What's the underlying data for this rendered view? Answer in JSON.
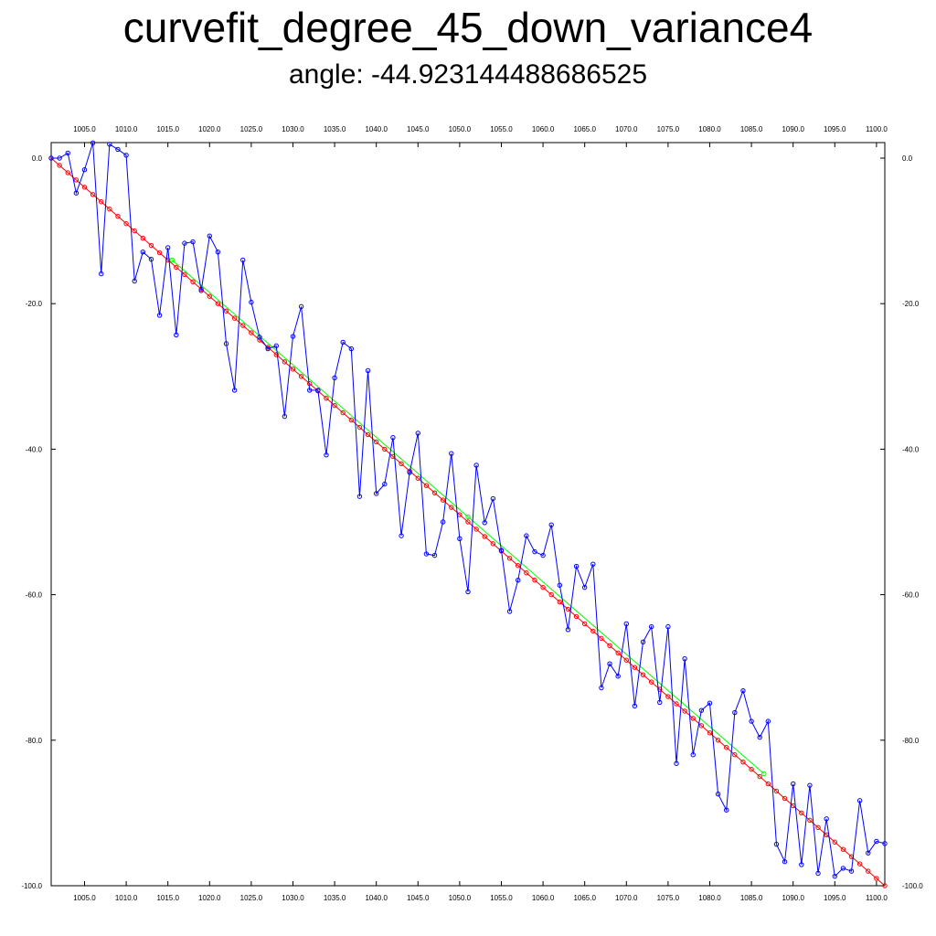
{
  "chart_data": {
    "type": "line",
    "title": "curvefit_degree_45_down_variance4",
    "subtitle": "angle: -44.923144488686525",
    "xlim": [
      1001,
      1101
    ],
    "ylim": [
      -100,
      2
    ],
    "x_ticks": [
      1005,
      1010,
      1015,
      1020,
      1025,
      1030,
      1035,
      1040,
      1045,
      1050,
      1055,
      1060,
      1065,
      1070,
      1075,
      1080,
      1085,
      1090,
      1095,
      1100
    ],
    "x_tick_labels": [
      "1005.0",
      "1010.0",
      "1015.0",
      "1020.0",
      "1025.0",
      "1030.0",
      "1035.0",
      "1040.0",
      "1045.0",
      "1050.0",
      "1055.0",
      "1060.0",
      "1065.0",
      "1070.0",
      "1075.0",
      "1080.0",
      "1085.0",
      "1090.0",
      "1095.0",
      "1100.0"
    ],
    "y_ticks": [
      0,
      -20,
      -40,
      -60,
      -80,
      -100
    ],
    "y_tick_labels": [
      "0.0",
      "-20.0",
      "-40.0",
      "-60.0",
      "-80.0",
      "-100.0"
    ],
    "grid": false,
    "series": [
      {
        "color": "#0000ff",
        "markers": true,
        "x": [
          1001,
          1002,
          1003,
          1004,
          1005,
          1006,
          1007,
          1008,
          1009,
          1010,
          1011,
          1012,
          1013,
          1014,
          1015,
          1016,
          1017,
          1018,
          1019,
          1020,
          1021,
          1022,
          1023,
          1024,
          1025,
          1026,
          1027,
          1028,
          1029,
          1030,
          1031,
          1032,
          1033,
          1034,
          1035,
          1036,
          1037,
          1038,
          1039,
          1040,
          1041,
          1042,
          1043,
          1044,
          1045,
          1046,
          1047,
          1048,
          1049,
          1050,
          1051,
          1052,
          1053,
          1054,
          1055,
          1056,
          1057,
          1058,
          1059,
          1060,
          1061,
          1062,
          1063,
          1064,
          1065,
          1066,
          1067,
          1068,
          1069,
          1070,
          1071,
          1072,
          1073,
          1074,
          1075,
          1076,
          1077,
          1078,
          1079,
          1080,
          1081,
          1082,
          1083,
          1084,
          1085,
          1086,
          1087,
          1088,
          1089,
          1090,
          1091,
          1092,
          1093,
          1094,
          1095,
          1096,
          1097,
          1098,
          1099,
          1100,
          1101
        ],
        "y": [
          0.0,
          0.0,
          0.7,
          -4.8,
          -1.6,
          2.1,
          -15.9,
          1.9,
          1.2,
          0.4,
          -16.9,
          -12.9,
          -13.9,
          -21.6,
          -12.3,
          -24.3,
          -11.7,
          -11.5,
          -18.2,
          -10.7,
          -12.9,
          -25.5,
          -31.9,
          -14.0,
          -19.8,
          -24.6,
          -26.2,
          -25.8,
          -35.5,
          -24.5,
          -20.4,
          -31.9,
          -31.9,
          -40.8,
          -30.2,
          -25.3,
          -26.2,
          -46.5,
          -29.2,
          -46.1,
          -44.8,
          -38.4,
          -51.9,
          -43.2,
          -37.8,
          -54.4,
          -54.6,
          -50.0,
          -40.6,
          -52.3,
          -59.6,
          -42.2,
          -50.1,
          -46.8,
          -53.9,
          -62.3,
          -58.0,
          -51.9,
          -54.1,
          -54.6,
          -50.4,
          -58.7,
          -64.8,
          -56.1,
          -59.0,
          -55.8,
          -72.8,
          -69.5,
          -71.2,
          -64.0,
          -75.3,
          -66.5,
          -64.4,
          -74.8,
          -64.4,
          -83.2,
          -68.8,
          -82.0,
          -75.9,
          -74.9,
          -87.4,
          -89.6,
          -76.2,
          -73.2,
          -77.4,
          -79.6,
          -77.4,
          -94.3,
          -96.7,
          -86.0,
          -97.1,
          -86.2,
          -98.3,
          -90.8,
          -98.7,
          -97.6,
          -98.0,
          -88.3,
          -95.5,
          -93.9,
          -94.2
        ]
      },
      {
        "color": "#ff0000",
        "markers": true,
        "x_start": 1001,
        "x_end": 1101,
        "x_step": 1,
        "y_start": 0.0,
        "y_end": -100.0
      },
      {
        "color": "#00ff00",
        "markers": true,
        "x": [
          1015.5,
          1051.0,
          1086.5
        ],
        "y": [
          -14.0,
          -49.3,
          -84.6
        ]
      }
    ]
  }
}
